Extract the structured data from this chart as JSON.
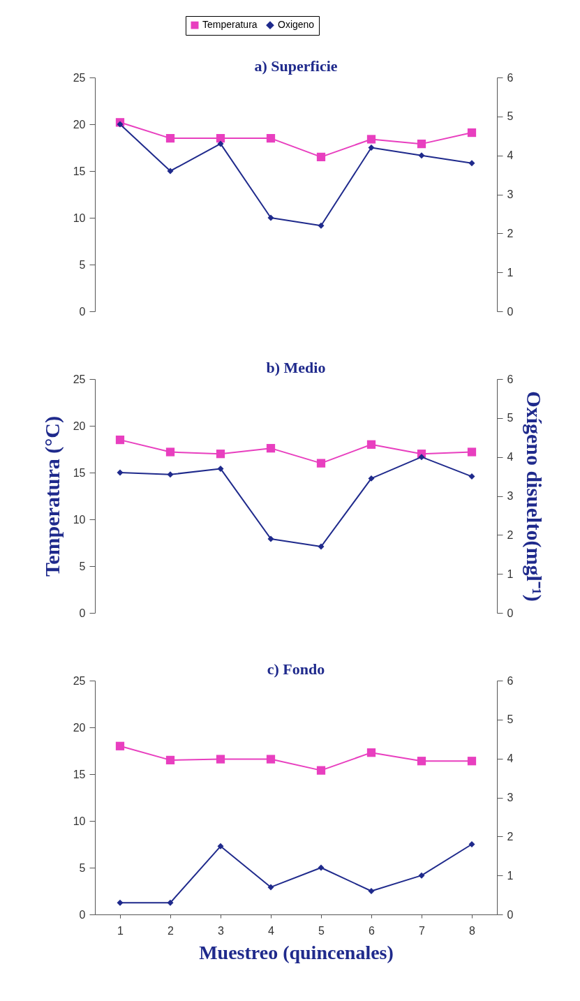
{
  "chart_data": [
    {
      "type": "line",
      "title": "a) Superficie",
      "categories": [
        "1",
        "2",
        "3",
        "4",
        "5",
        "6",
        "7",
        "8"
      ],
      "ylim": [
        0,
        25
      ],
      "yticks": [
        0,
        5,
        10,
        15,
        20,
        25
      ],
      "y2lim": [
        0,
        6
      ],
      "y2ticks": [
        0,
        1,
        2,
        3,
        4,
        5,
        6
      ],
      "tick_labels": "y",
      "legend": "top",
      "grid": false,
      "series": [
        {
          "name": "Temperatura",
          "color": "#e83fbf",
          "marker": "square",
          "values": [
            20.2,
            18.5,
            18.5,
            18.5,
            16.5,
            18.4,
            17.9,
            19.1
          ]
        },
        {
          "name": "Oxigeno",
          "color": "#1f2a8c",
          "marker": "diamond",
          "axis": "y2",
          "values": [
            4.8,
            3.6,
            4.3,
            2.4,
            2.2,
            4.2,
            4.0,
            3.8
          ]
        }
      ]
    },
    {
      "type": "line",
      "title": "b) Medio",
      "ylabel": "Temperatura (°C)",
      "y2label": "Oxígeno disuelto(mgl⁻¹)",
      "categories": [
        "1",
        "2",
        "3",
        "4",
        "5",
        "6",
        "7",
        "8"
      ],
      "ylim": [
        0,
        25
      ],
      "yticks": [
        0,
        5,
        10,
        15,
        20,
        25
      ],
      "y2lim": [
        0,
        6
      ],
      "y2ticks": [
        0,
        1,
        2,
        3,
        4,
        5,
        6
      ],
      "tick_labels": "y",
      "grid": false,
      "series": [
        {
          "color": "#e83fbf",
          "marker": "square",
          "values": [
            18.5,
            17.2,
            17.0,
            17.6,
            16.0,
            18.0,
            17.0,
            17.2
          ]
        },
        {
          "color": "#1f2a8c",
          "marker": "diamond",
          "axis": "y2",
          "values": [
            3.6,
            3.55,
            3.7,
            1.9,
            1.7,
            3.45,
            4.0,
            3.5
          ]
        }
      ]
    },
    {
      "type": "line",
      "title": "c) Fondo",
      "xlabel": "Muestreo (quincenales)",
      "categories": [
        "1",
        "2",
        "3",
        "4",
        "5",
        "6",
        "7",
        "8"
      ],
      "ylim": [
        0,
        25
      ],
      "yticks": [
        0,
        5,
        10,
        15,
        20,
        25
      ],
      "y2lim": [
        0,
        6
      ],
      "y2ticks": [
        0,
        1,
        2,
        3,
        4,
        5,
        6
      ],
      "grid": false,
      "series": [
        {
          "color": "#e83fbf",
          "marker": "square",
          "values": [
            18.0,
            16.5,
            16.6,
            16.6,
            15.4,
            17.3,
            16.4,
            16.4
          ]
        },
        {
          "color": "#1f2a8c",
          "marker": "diamond",
          "axis": "y2",
          "values": [
            0.3,
            0.3,
            1.75,
            0.7,
            1.2,
            0.6,
            1.0,
            1.8
          ]
        }
      ]
    }
  ]
}
